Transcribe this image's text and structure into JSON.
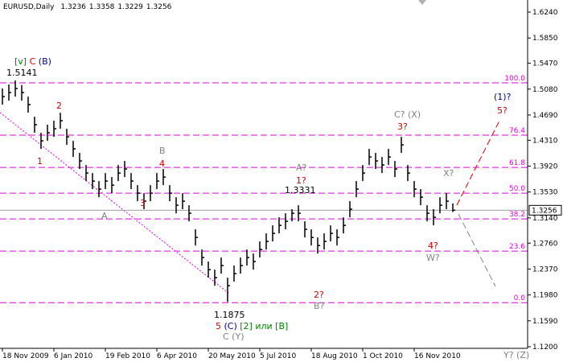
{
  "chart_data": {
    "type": "ohlc",
    "symbol": "EURUSD,Daily",
    "last_bar": [
      1.3236,
      1.3358,
      1.3229,
      1.3256
    ],
    "color": "#000000",
    "ylim": [
      1.1176,
      1.6422
    ],
    "yticks": [
      {
        "value": 1.624,
        "label": "1.6240"
      },
      {
        "value": 1.585,
        "label": "1.5850"
      },
      {
        "value": 1.547,
        "label": "1.5470"
      },
      {
        "value": 1.508,
        "label": "1.5080"
      },
      {
        "value": 1.469,
        "label": "1.4690"
      },
      {
        "value": 1.431,
        "label": "1.4310"
      },
      {
        "value": 1.392,
        "label": "1.3920"
      },
      {
        "value": 1.353,
        "label": "1.3530"
      },
      {
        "value": 1.314,
        "label": "1.3140"
      },
      {
        "value": 1.276,
        "label": "1.2760"
      },
      {
        "value": 1.237,
        "label": "1.2370"
      },
      {
        "value": 1.198,
        "label": "1.1980"
      },
      {
        "value": 1.159,
        "label": "1.1590"
      },
      {
        "value": 1.12,
        "label": "1.1200"
      }
    ],
    "categories": [
      "18 Nov 2009",
      null,
      null,
      null,
      null,
      null,
      null,
      null,
      "6 Jan 2010",
      null,
      null,
      null,
      null,
      null,
      null,
      null,
      "19 Feb 2010",
      null,
      null,
      null,
      null,
      null,
      null,
      null,
      "6 Apr 2010",
      null,
      null,
      null,
      null,
      null,
      null,
      null,
      "20 May 2010",
      null,
      null,
      null,
      null,
      null,
      null,
      null,
      "5 Jul 2010",
      null,
      null,
      null,
      null,
      null,
      null,
      null,
      "18 Aug 2010",
      null,
      null,
      null,
      null,
      null,
      null,
      null,
      "1 Oct 2010",
      null,
      null,
      null,
      null,
      null,
      null,
      null,
      "16 Nov 2010",
      null,
      null,
      null,
      null,
      null,
      null
    ],
    "high": [
      1.5089,
      1.5149,
      1.521,
      1.5141,
      1.4967,
      1.4664,
      1.4422,
      1.4543,
      1.4604,
      1.4725,
      1.4483,
      1.4301,
      1.4119,
      1.3937,
      1.3816,
      1.3695,
      1.3816,
      1.3755,
      1.3937,
      1.3998,
      1.3816,
      1.3634,
      1.3513,
      1.3634,
      1.3816,
      1.3877,
      1.3634,
      1.3452,
      1.3513,
      1.3331,
      1.2968,
      1.2664,
      1.2483,
      1.2361,
      1.2543,
      1.224,
      1.2422,
      1.2543,
      1.2664,
      1.2604,
      1.2786,
      1.2907,
      1.3028,
      1.3149,
      1.321,
      1.3271,
      1.3331,
      1.3089,
      1.2968,
      1.2846,
      1.2907,
      1.3028,
      1.2968,
      1.3149,
      1.3392,
      1.3695,
      1.3937,
      1.418,
      1.4119,
      1.4058,
      1.418,
      1.3998,
      1.4361,
      1.3937,
      1.3695,
      1.3574,
      1.3331,
      1.3271,
      1.3452,
      1.3513,
      1.3358
    ],
    "low": [
      1.4846,
      1.4907,
      1.4967,
      1.4907,
      1.4725,
      1.4422,
      1.418,
      1.4301,
      1.4361,
      1.4483,
      1.424,
      1.4058,
      1.3877,
      1.3695,
      1.3574,
      1.3452,
      1.3574,
      1.3513,
      1.3695,
      1.3755,
      1.3574,
      1.3392,
      1.3271,
      1.3392,
      1.3574,
      1.3634,
      1.3392,
      1.321,
      1.3271,
      1.3089,
      1.2725,
      1.2422,
      1.224,
      1.2119,
      1.2301,
      1.1875,
      1.218,
      1.2301,
      1.2422,
      1.2361,
      1.2543,
      1.2664,
      1.2786,
      1.2907,
      1.2968,
      1.3089,
      1.3089,
      1.2846,
      1.2725,
      1.2604,
      1.2664,
      1.2786,
      1.2725,
      1.2907,
      1.3149,
      1.3452,
      1.3695,
      1.3937,
      1.3877,
      1.3816,
      1.3937,
      1.3755,
      1.4119,
      1.3695,
      1.3452,
      1.3331,
      1.3089,
      1.3028,
      1.321,
      1.3271,
      1.3229
    ],
    "close": [
      1.4967,
      1.5028,
      1.5089,
      1.5028,
      1.4846,
      1.4543,
      1.4301,
      1.4422,
      1.4483,
      1.4604,
      1.4361,
      1.418,
      1.3998,
      1.3816,
      1.3695,
      1.3574,
      1.3695,
      1.3634,
      1.3816,
      1.3877,
      1.3695,
      1.3513,
      1.3392,
      1.3513,
      1.3695,
      1.3755,
      1.3513,
      1.3331,
      1.3392,
      1.321,
      1.2846,
      1.2543,
      1.2361,
      1.224,
      1.2422,
      1.2119,
      1.2301,
      1.2422,
      1.2543,
      1.2483,
      1.2664,
      1.2786,
      1.2907,
      1.3028,
      1.3089,
      1.321,
      1.321,
      1.2968,
      1.2846,
      1.2725,
      1.2786,
      1.2907,
      1.2846,
      1.3028,
      1.3271,
      1.3574,
      1.3816,
      1.4058,
      1.3998,
      1.3937,
      1.4058,
      1.3877,
      1.424,
      1.3816,
      1.3574,
      1.3452,
      1.321,
      1.3149,
      1.3331,
      1.3392,
      1.3256
    ],
    "levels": [
      {
        "name": "100.0",
        "price": 1.5174
      },
      {
        "name": "76.4",
        "price": 1.4386
      },
      {
        "name": "61.8",
        "price": 1.3901
      },
      {
        "name": "50.0",
        "price": 1.3513
      },
      {
        "name": "38.2",
        "price": 1.3125
      },
      {
        "name": "23.6",
        "price": 1.264
      },
      {
        "name": "0.0",
        "price": 1.1864
      }
    ],
    "level_color": "#e000e0",
    "annotations": [
      {
        "parts": [
          {
            "text": "[v]",
            "color": "#008000"
          },
          {
            "text": " C",
            "color": "#d00000"
          },
          {
            "text": " (B)",
            "color": "#000090"
          }
        ]
      },
      {
        "parts": [
          {
            "text": "1.5141",
            "color": "#000000"
          }
        ]
      },
      {
        "parts": [
          {
            "text": "2",
            "color": "#d00000"
          }
        ]
      },
      {
        "parts": [
          {
            "text": "1",
            "color": "#d00000"
          }
        ]
      },
      {
        "parts": [
          {
            "text": "B",
            "color": "#808080"
          }
        ]
      },
      {
        "parts": [
          {
            "text": "4",
            "color": "#d00000"
          }
        ]
      },
      {
        "parts": [
          {
            "text": "A",
            "color": "#808080"
          }
        ]
      },
      {
        "parts": [
          {
            "text": "3",
            "color": "#d00000"
          }
        ]
      },
      {
        "parts": [
          {
            "text": "A?",
            "color": "#808080"
          }
        ]
      },
      {
        "parts": [
          {
            "text": "1?",
            "color": "#d00000"
          }
        ]
      },
      {
        "parts": [
          {
            "text": "1.3331",
            "color": "#000000"
          }
        ]
      },
      {
        "parts": [
          {
            "text": "2?",
            "color": "#d00000"
          }
        ]
      },
      {
        "parts": [
          {
            "text": "B?",
            "color": "#808080"
          }
        ]
      },
      {
        "parts": [
          {
            "text": "C? (X)",
            "color": "#808080"
          }
        ]
      },
      {
        "parts": [
          {
            "text": "3?",
            "color": "#d00000"
          }
        ]
      },
      {
        "parts": [
          {
            "text": "X?",
            "color": "#808080"
          }
        ]
      },
      {
        "parts": [
          {
            "text": "4?",
            "color": "#d00000"
          }
        ]
      },
      {
        "parts": [
          {
            "text": "W?",
            "color": "#808080"
          }
        ]
      },
      {
        "parts": [
          {
            "text": "(1)?",
            "color": "#000090"
          }
        ]
      },
      {
        "parts": [
          {
            "text": "5?",
            "color": "#d00000"
          }
        ]
      },
      {
        "parts": [
          {
            "text": "Y? (Z)",
            "color": "#808080"
          }
        ]
      },
      {
        "parts": [
          {
            "text": "1.1875",
            "color": "#000000"
          }
        ]
      },
      {
        "parts": [
          {
            "text": "5",
            "color": "#d00000"
          },
          {
            "text": " (C)",
            "color": "#000090"
          },
          {
            "text": " [2] или [B]",
            "color": "#008000"
          }
        ]
      },
      {
        "parts": [
          {
            "text": "C (Y)",
            "color": "#808080"
          }
        ]
      }
    ]
  }
}
